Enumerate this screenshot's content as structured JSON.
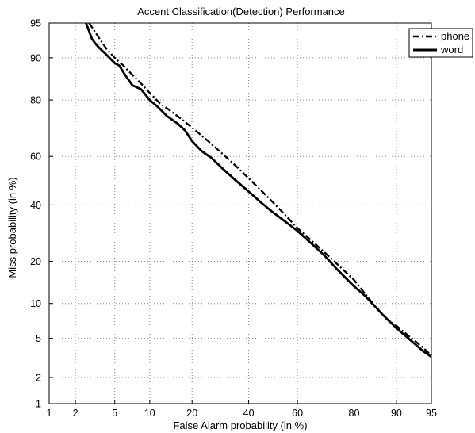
{
  "chart_data": {
    "type": "line",
    "title": "Accent Classification(Detection) Performance",
    "xlabel": "False Alarm probability (in %)",
    "ylabel": "Miss probability (in %)",
    "scale": "normal-deviate (DET)",
    "grid": true,
    "legend_position": "top-right",
    "x_ticks": [
      1,
      2,
      5,
      10,
      20,
      40,
      60,
      80,
      90,
      95
    ],
    "y_ticks": [
      1,
      2,
      5,
      10,
      20,
      40,
      60,
      80,
      90,
      95
    ],
    "xlim": [
      1,
      95
    ],
    "ylim": [
      1,
      95
    ],
    "series": [
      {
        "name": "phone",
        "style": "dashdot",
        "color": "#000000",
        "points": [
          [
            2.8,
            95
          ],
          [
            3.2,
            94
          ],
          [
            3.6,
            93
          ],
          [
            4.2,
            91.5
          ],
          [
            5,
            90
          ],
          [
            6,
            88.5
          ],
          [
            7.5,
            86
          ],
          [
            8.8,
            84
          ],
          [
            10,
            82
          ],
          [
            12,
            79
          ],
          [
            14,
            77
          ],
          [
            16,
            75
          ],
          [
            18,
            73
          ],
          [
            20,
            71
          ],
          [
            24,
            67
          ],
          [
            28,
            63
          ],
          [
            32,
            59
          ],
          [
            36,
            55
          ],
          [
            40,
            51
          ],
          [
            45,
            46
          ],
          [
            50,
            41
          ],
          [
            55,
            36
          ],
          [
            60,
            31
          ],
          [
            65,
            27
          ],
          [
            70,
            23
          ],
          [
            75,
            19
          ],
          [
            80,
            15
          ],
          [
            85,
            10
          ],
          [
            88,
            7.5
          ],
          [
            90,
            6.5
          ],
          [
            92,
            5.3
          ],
          [
            94,
            4.1
          ],
          [
            95,
            3.4
          ]
        ]
      },
      {
        "name": "word",
        "style": "solid",
        "color": "#000000",
        "points": [
          [
            2.6,
            95
          ],
          [
            3,
            93
          ],
          [
            3.4,
            92
          ],
          [
            4.2,
            90.5
          ],
          [
            5,
            89
          ],
          [
            5.5,
            88.5
          ],
          [
            6.2,
            86.5
          ],
          [
            7.2,
            84
          ],
          [
            8.5,
            83
          ],
          [
            10,
            80
          ],
          [
            11.5,
            78
          ],
          [
            13.5,
            75
          ],
          [
            16,
            72.5
          ],
          [
            18,
            70
          ],
          [
            20,
            66
          ],
          [
            23,
            62
          ],
          [
            26,
            59.5
          ],
          [
            30,
            55
          ],
          [
            35,
            50
          ],
          [
            40,
            45.5
          ],
          [
            45,
            41
          ],
          [
            50,
            37
          ],
          [
            55,
            33.5
          ],
          [
            60,
            30
          ],
          [
            65,
            26
          ],
          [
            70,
            22
          ],
          [
            75,
            17.5
          ],
          [
            80,
            13.5
          ],
          [
            83,
            11.5
          ],
          [
            87,
            8.3
          ],
          [
            90,
            6.2
          ],
          [
            92,
            5
          ],
          [
            94,
            3.8
          ],
          [
            95,
            3.3
          ]
        ]
      }
    ]
  }
}
